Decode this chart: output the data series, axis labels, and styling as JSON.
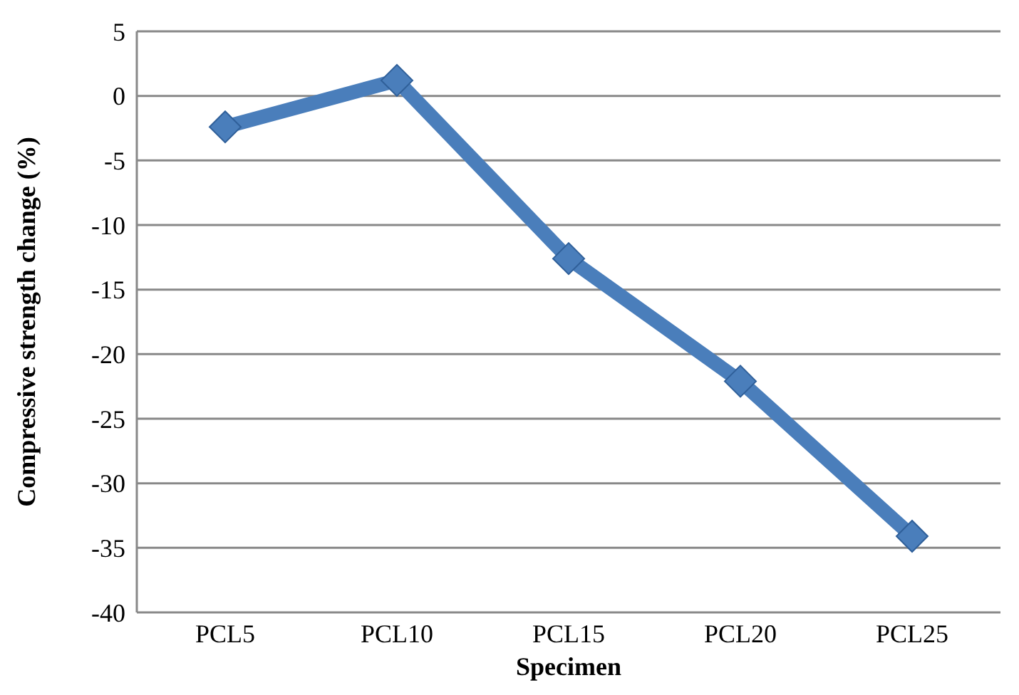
{
  "chart_data": {
    "type": "line",
    "xlabel": "Specimen",
    "ylabel": "Compressive strength change (%)",
    "categories": [
      "PCL5",
      "PCL10",
      "PCL15",
      "PCL20",
      "PCL25"
    ],
    "series": [
      {
        "color": "#4a7ebb",
        "values": [
          -2.4,
          1.2,
          -12.6,
          -22.1,
          -34.1
        ]
      }
    ],
    "ylim": [
      -40,
      5
    ],
    "yticks": [
      -40,
      -35,
      -30,
      -25,
      -20,
      -15,
      -10,
      -5,
      0,
      5
    ],
    "grid": "y",
    "marker": "diamond",
    "line_style": "solid"
  }
}
